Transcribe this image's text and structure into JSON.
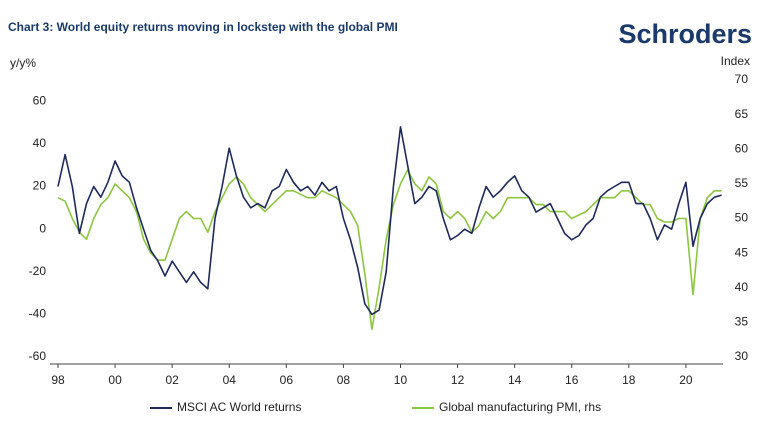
{
  "brand": "Schroders",
  "chart_data": {
    "type": "line",
    "title": "Chart 3: World equity returns moving in lockstep with the global PMI",
    "y_label": "y/y%",
    "y2_label": "Index",
    "x": [
      1998.0,
      1998.25,
      1998.5,
      1998.75,
      1999.0,
      1999.25,
      1999.5,
      1999.75,
      2000.0,
      2000.25,
      2000.5,
      2000.75,
      2001.0,
      2001.25,
      2001.5,
      2001.75,
      2002.0,
      2002.25,
      2002.5,
      2002.75,
      2003.0,
      2003.25,
      2003.5,
      2003.75,
      2004.0,
      2004.25,
      2004.5,
      2004.75,
      2005.0,
      2005.25,
      2005.5,
      2005.75,
      2006.0,
      2006.25,
      2006.5,
      2006.75,
      2007.0,
      2007.25,
      2007.5,
      2007.75,
      2008.0,
      2008.25,
      2008.5,
      2008.75,
      2009.0,
      2009.25,
      2009.5,
      2009.75,
      2010.0,
      2010.25,
      2010.5,
      2010.75,
      2011.0,
      2011.25,
      2011.5,
      2011.75,
      2012.0,
      2012.25,
      2012.5,
      2012.75,
      2013.0,
      2013.25,
      2013.5,
      2013.75,
      2014.0,
      2014.25,
      2014.5,
      2014.75,
      2015.0,
      2015.25,
      2015.5,
      2015.75,
      2016.0,
      2016.25,
      2016.5,
      2016.75,
      2017.0,
      2017.25,
      2017.5,
      2017.75,
      2018.0,
      2018.25,
      2018.5,
      2018.75,
      2019.0,
      2019.25,
      2019.5,
      2019.75,
      2020.0,
      2020.25,
      2020.5,
      2020.75,
      2021.0,
      2021.25
    ],
    "series": [
      {
        "name": "MSCI AC World returns",
        "color": "#1f2a5c",
        "values": [
          20,
          35,
          20,
          -2,
          12,
          20,
          15,
          22,
          32,
          25,
          22,
          10,
          0,
          -10,
          -15,
          -22,
          -15,
          -20,
          -25,
          -20,
          -25,
          -28,
          5,
          20,
          38,
          25,
          15,
          10,
          12,
          10,
          18,
          20,
          28,
          22,
          18,
          20,
          16,
          22,
          18,
          20,
          5,
          -5,
          -18,
          -35,
          -40,
          -38,
          -20,
          20,
          48,
          30,
          12,
          15,
          20,
          18,
          5,
          -5,
          -3,
          0,
          -2,
          10,
          20,
          15,
          18,
          22,
          25,
          18,
          15,
          8,
          10,
          12,
          5,
          -2,
          -5,
          -3,
          2,
          5,
          15,
          18,
          20,
          22,
          22,
          12,
          12,
          5,
          -5,
          2,
          0,
          12,
          22,
          -8,
          5,
          12,
          15,
          16
        ]
      },
      {
        "name": "Global manufacturing PMI, rhs",
        "color": "#8dc63f",
        "axis": "y2",
        "values": [
          53,
          52.5,
          50,
          48,
          47,
          50,
          52,
          53,
          55,
          54,
          53,
          51,
          47,
          45,
          44,
          44,
          47,
          50,
          51,
          50,
          50,
          48,
          51,
          53,
          55,
          56,
          55,
          53,
          52,
          51,
          52,
          53,
          54,
          54,
          53.5,
          53,
          53,
          54,
          53.5,
          53,
          52,
          51,
          49,
          42,
          34,
          40,
          47,
          52,
          55,
          57,
          55,
          54,
          56,
          55,
          51,
          50,
          51,
          50,
          48,
          49,
          51,
          50,
          51,
          53,
          53,
          53,
          53,
          52,
          52,
          51,
          51,
          51,
          50,
          50.5,
          51,
          52,
          53,
          53,
          53,
          54,
          54,
          53,
          52,
          52,
          50,
          49.5,
          49.5,
          50,
          50,
          39,
          50,
          53,
          54,
          54
        ]
      }
    ],
    "xlim": [
      1998,
      2021.3
    ],
    "xticks": [
      {
        "value": 1998,
        "label": "98"
      },
      {
        "value": 2000,
        "label": "00"
      },
      {
        "value": 2002,
        "label": "02"
      },
      {
        "value": 2004,
        "label": "04"
      },
      {
        "value": 2006,
        "label": "06"
      },
      {
        "value": 2008,
        "label": "08"
      },
      {
        "value": 2010,
        "label": "10"
      },
      {
        "value": 2012,
        "label": "12"
      },
      {
        "value": 2014,
        "label": "14"
      },
      {
        "value": 2016,
        "label": "16"
      },
      {
        "value": 2018,
        "label": "18"
      },
      {
        "value": 2020,
        "label": "20"
      }
    ],
    "ylim": [
      -60,
      70
    ],
    "yticks": [
      -60,
      -40,
      -20,
      0,
      20,
      40,
      60
    ],
    "y2lim": [
      30,
      70
    ],
    "y2ticks": [
      30,
      35,
      40,
      45,
      50,
      55,
      60,
      65,
      70
    ],
    "legend": "bottom"
  }
}
